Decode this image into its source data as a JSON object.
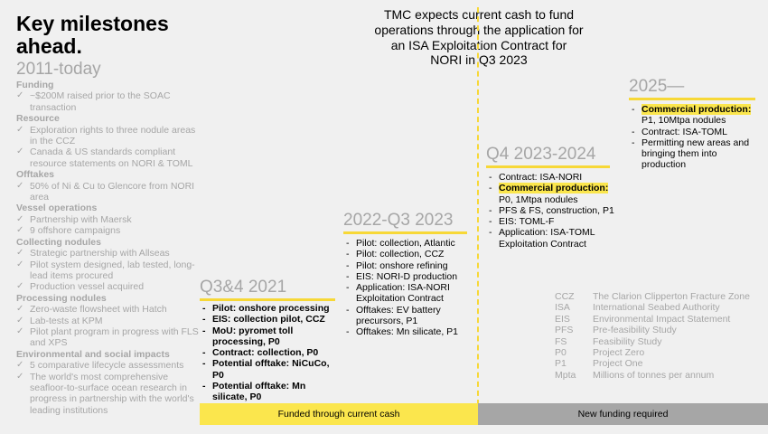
{
  "title": "Key milestones ahead.",
  "banner": "TMC expects current cash to fund operations through the application for an ISA Exploitation Contract for NORI in Q3 2023",
  "left": {
    "era": "2011-today",
    "sections": [
      {
        "heading": "Funding",
        "items": [
          "~$200M raised prior to the SOAC transaction"
        ]
      },
      {
        "heading": "Resource",
        "items": [
          "Exploration rights to three nodule areas in the CCZ",
          "Canada & US standards compliant resource statements on NORI & TOML"
        ]
      },
      {
        "heading": "Offtakes",
        "items": [
          "50% of Ni & Cu to Glencore from NORI area"
        ]
      },
      {
        "heading": "Vessel operations",
        "items": [
          "Partnership with Maersk",
          "9 offshore campaigns"
        ]
      },
      {
        "heading": "Collecting nodules",
        "items": [
          "Strategic partnership with Allseas",
          "Pilot system designed, lab tested, long-lead items procured",
          "Production vessel acquired"
        ]
      },
      {
        "heading": "Processing nodules",
        "items": [
          "Zero-waste flowsheet with Hatch",
          "Lab-tests at KPM",
          "Pilot plant program in progress with FLS and XPS"
        ]
      },
      {
        "heading": "Environmental and social impacts",
        "items": [
          "5 comparative lifecycle assessments",
          "The world's most comprehensive seafloor-to-surface ocean research in progress in partnership with the world's leading institutions"
        ]
      }
    ]
  },
  "q3_2021": {
    "heading": "Q3&4 2021",
    "items": [
      "Pilot: onshore processing",
      "EIS: collection pilot, CCZ",
      "MoU: pyromet toll processing, P0",
      "Contract: collection, P0",
      "Potential offtake: NiCuCo, P0",
      "Potential offtake: Mn silicate, P0"
    ]
  },
  "q2022": {
    "heading": "2022-Q3 2023",
    "items": [
      "Pilot: collection, Atlantic",
      "Pilot: collection, CCZ",
      "Pilot: onshore refining",
      "EIS: NORI-D production",
      "Application: ISA-NORI Exploitation Contract",
      "Offtakes: EV battery precursors, P1",
      "Offtakes: Mn silicate, P1"
    ]
  },
  "q4_2023": {
    "heading": "Q4 2023-2024",
    "item1": "Contract: ISA-NORI",
    "hl": "Commercial production:",
    "hl_rest": "P0, 1Mtpa nodules",
    "item3": "PFS & FS, construction, P1",
    "item4": "EIS: TOML-F",
    "item5": "Application: ISA-TOML Exploitation Contract"
  },
  "y2025": {
    "heading": "2025—",
    "hl": "Commercial production:",
    "hl_rest": "P1, 10Mtpa nodules",
    "item2": "Contract: ISA-TOML",
    "item3": "Permitting new areas and bringing them into production"
  },
  "legend": [
    {
      "abbr": "CCZ",
      "desc": "The Clarion Clipperton Fracture Zone"
    },
    {
      "abbr": "ISA",
      "desc": "International Seabed Authority"
    },
    {
      "abbr": "EIS",
      "desc": "Environmental Impact Statement"
    },
    {
      "abbr": "PFS",
      "desc": "Pre-feasibility Study"
    },
    {
      "abbr": "FS",
      "desc": "Feasibility Study"
    },
    {
      "abbr": "P0",
      "desc": "Project Zero"
    },
    {
      "abbr": "P1",
      "desc": "Project One"
    },
    {
      "abbr": "Mpta",
      "desc": "Millions of tonnes per annum"
    }
  ],
  "bars": {
    "funded": "Funded through current cash",
    "new": "New funding required"
  }
}
